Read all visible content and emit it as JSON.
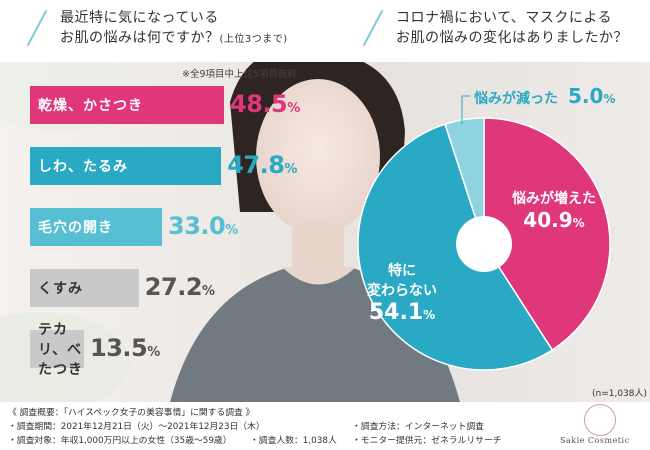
{
  "header": {
    "left_question_line1": "最近特に気になっている",
    "left_question_line2": "お肌の悩みは何ですか？",
    "left_question_note": "(上位3つまで)",
    "right_question_line1": "コロナ禍において、マスクによる",
    "right_question_line2": "お肌の悩みの変化はありましたか？"
  },
  "colors": {
    "magenta": "#e0367a",
    "teal": "#2aa9c4",
    "light_teal": "#56bfd4",
    "gray": "#c9c9c9",
    "pale_blue": "#8fd3e0"
  },
  "chart_data": [
    {
      "type": "bar",
      "note": "※全9項目中上位5項目抜粋",
      "categories": [
        "乾燥、かさつき",
        "しわ、たるみ",
        "毛穴の開き",
        "くすみ",
        "テカリ、べたつき"
      ],
      "values": [
        48.5,
        47.8,
        33.0,
        27.2,
        13.5
      ],
      "value_labels": [
        "48.5",
        "47.8",
        "33.0",
        "27.2",
        "13.5"
      ],
      "unit": "%"
    },
    {
      "type": "pie",
      "labels": [
        "悩みが増えた",
        "特に変わらない",
        "悩みが減った"
      ],
      "values": [
        40.9,
        54.1,
        5.0
      ],
      "value_labels": [
        "40.9",
        "54.1",
        "5.0"
      ],
      "unit": "%",
      "sample": "(n=1,038人)"
    }
  ],
  "footer": {
    "line1": "《 調査概要：「ハイスペック女子の美容事情」に関する調査 》",
    "period": "・調査期間：2021年12月21日（火）～2021年12月23日（木）",
    "method": "・調査方法：インターネット調査",
    "target": "・調査対象：年収1,000万円以上の女性（35歳～59歳）",
    "people": "・調査人数：1,038人",
    "provider": "・モニター提供元：ゼネラルリサーチ",
    "logo": "Sakie Cosmetic"
  }
}
